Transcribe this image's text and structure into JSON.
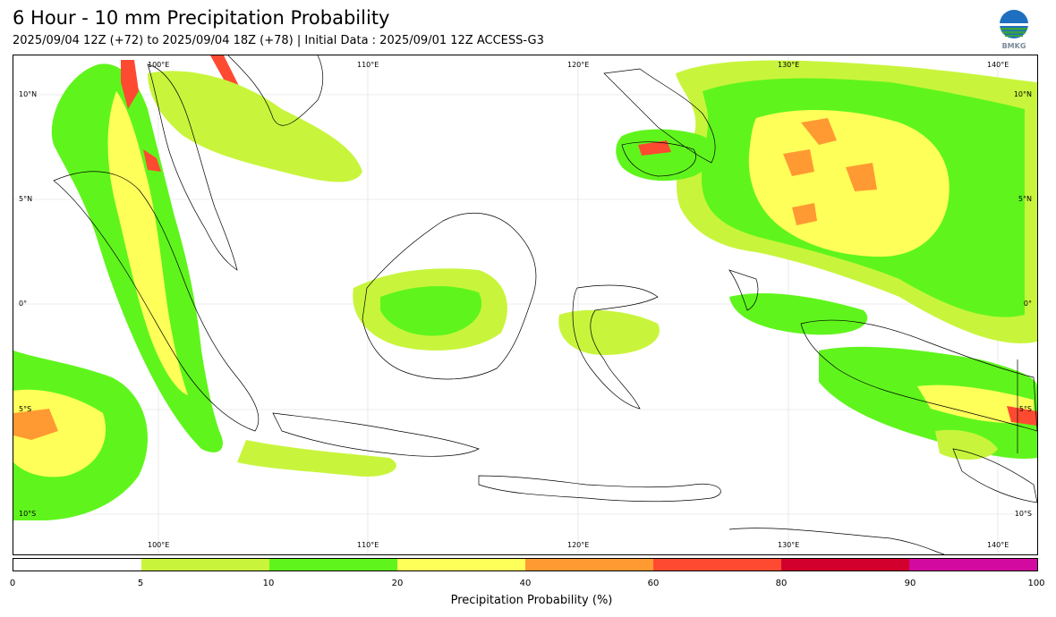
{
  "title": "6 Hour - 10 mm Precipitation Probability",
  "subtitle": "2025/09/04 12Z (+72) to 2025/09/04 18Z (+78) | Initial Data : 2025/09/01 12Z ACCESS-G3",
  "logo": {
    "icon": "bmkg-globe-logo",
    "text": "BMKG"
  },
  "map": {
    "lon_labels": [
      "100°E",
      "110°E",
      "120°E",
      "130°E",
      "140°E"
    ],
    "lat_labels": [
      "10°N",
      "5°N",
      "0°",
      "5°S",
      "10°S"
    ]
  },
  "colorbar": {
    "label": "Precipitation Probability (%)",
    "ticks": [
      "0",
      "5",
      "10",
      "20",
      "40",
      "60",
      "80",
      "90",
      "100"
    ],
    "colors": [
      "#ffffff",
      "#c8f53c",
      "#5ff51c",
      "#ffff5a",
      "#ff9a32",
      "#ff4a32",
      "#d2002c",
      "#d20aa0"
    ]
  }
}
